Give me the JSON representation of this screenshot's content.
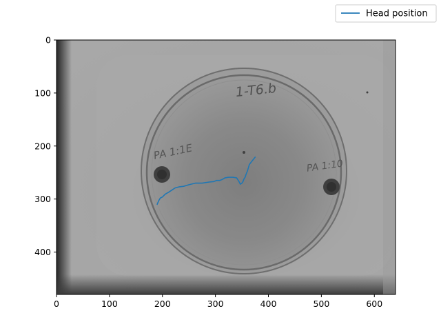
{
  "chart_data": {
    "type": "line",
    "background_image": "grayscale top-down photo of a petri dish with a handwritten lid label and two dark spots",
    "image_annotations": [
      "1-T6.b",
      "PA 1:1E",
      "PA 1:10"
    ],
    "x_ticks": [
      "0",
      "100",
      "200",
      "300",
      "400",
      "500",
      "600"
    ],
    "y_ticks": [
      "0",
      "100",
      "200",
      "300",
      "400"
    ],
    "xlim": [
      0,
      640
    ],
    "ylim": [
      480,
      0
    ],
    "y_inverted": true,
    "grid": false,
    "legend_position": "upper-right, outside the axes",
    "series": [
      {
        "name": "Head position",
        "color": "#1f77b4",
        "x": [
          190,
          193,
          196,
          200,
          205,
          212,
          218,
          224,
          232,
          240,
          250,
          262,
          275,
          288,
          297,
          302,
          308,
          313,
          318,
          325,
          333,
          340,
          344,
          347,
          350,
          352,
          354,
          356,
          358,
          360,
          362,
          364,
          367,
          371,
          375
        ],
        "y": [
          310,
          303,
          298,
          296,
          291,
          287,
          283,
          279,
          277,
          276,
          273,
          270,
          270,
          268,
          267,
          265,
          265,
          263,
          260,
          259,
          259,
          260,
          266,
          272,
          270,
          267,
          262,
          259,
          253,
          248,
          242,
          235,
          231,
          226,
          221
        ]
      }
    ]
  }
}
